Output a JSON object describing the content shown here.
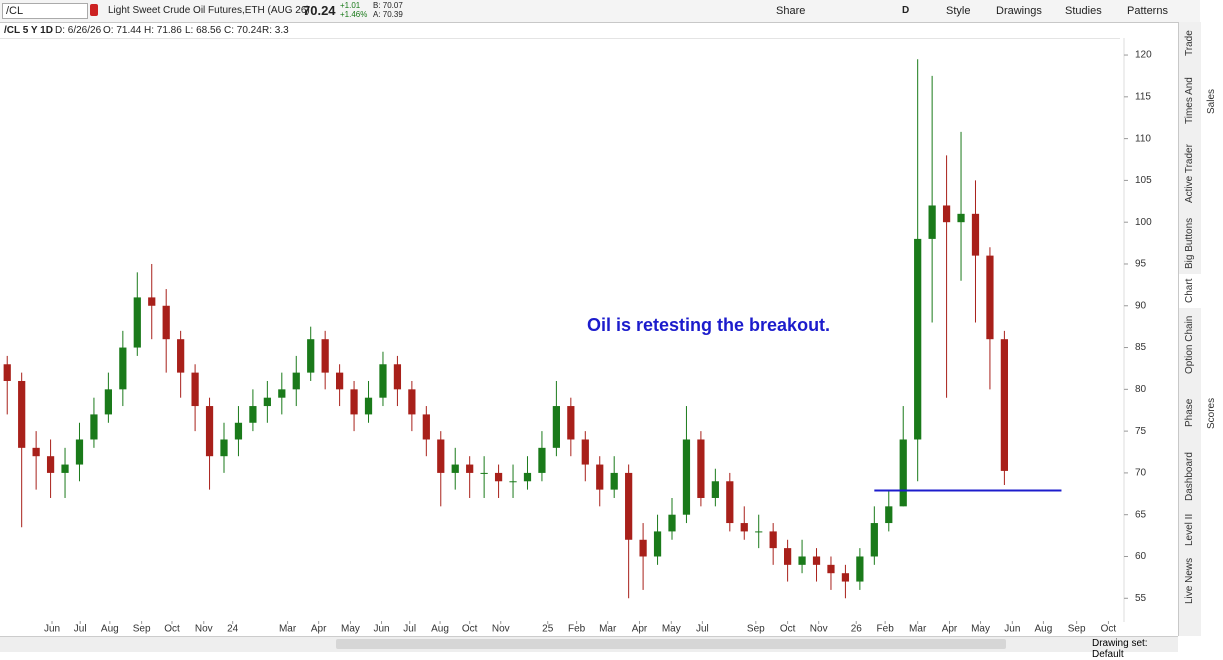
{
  "toolbar": {
    "symbol": "/CL",
    "description": "Light Sweet Crude Oil Futures,ETH (AUG 26)",
    "last": "70.24",
    "change": "+1.01",
    "change_pct": "+1.46%",
    "bid": "B: 70.07",
    "ask": "A: 70.39",
    "buttons": [
      "Share",
      "D",
      "Style",
      "Drawings",
      "Studies",
      "Patterns"
    ]
  },
  "info": {
    "label": "/CL 5 Y 1D",
    "date": "D: 6/26/26",
    "open": "O: 71.44",
    "high": "H: 71.86",
    "low": "L: 68.56",
    "close": "C: 70.24",
    "range": "R: 3.3"
  },
  "sidebar": [
    "Trade",
    "Times And Sales",
    "Active Trader",
    "Big Buttons",
    "Chart",
    "Option Chain",
    "Phase Scores",
    "Dashboard",
    "Level II",
    "Live News"
  ],
  "footer": {
    "drawing_set": "Drawing set: Default"
  },
  "chart_data": {
    "type": "candlestick",
    "annotation": "Oil is retesting the breakout.",
    "up_color": "#1a7a1a",
    "down_color": "#a8201a",
    "grid": false,
    "x": [
      1,
      3,
      5,
      7,
      9,
      11,
      13,
      15,
      17,
      19,
      21,
      23,
      25,
      27,
      29,
      31,
      33,
      35,
      37,
      39,
      41,
      43,
      45,
      47,
      49,
      51,
      53,
      55,
      57,
      59,
      61,
      63,
      65,
      67,
      69,
      71,
      73,
      75,
      77,
      79,
      81,
      83,
      85,
      87,
      89,
      91,
      93,
      95,
      97,
      99,
      101,
      103,
      105,
      107,
      109,
      111,
      113,
      115,
      117,
      119,
      121,
      123,
      125,
      127,
      129,
      131,
      133,
      135,
      137,
      139
    ],
    "open": [
      83,
      81,
      73,
      72,
      70,
      71,
      74,
      77,
      80,
      85,
      91,
      90,
      86,
      82,
      78,
      72,
      74,
      76,
      78,
      79,
      80,
      82,
      86,
      82,
      80,
      77,
      79,
      83,
      80,
      77,
      74,
      70,
      71,
      70,
      70,
      69,
      69,
      70,
      73,
      78,
      74,
      71,
      68,
      70,
      62,
      60,
      63,
      65,
      74,
      67,
      69,
      64,
      63,
      63,
      61,
      59,
      60,
      59,
      58,
      57,
      60,
      64,
      66,
      74,
      98,
      102,
      100,
      101,
      96,
      86
    ],
    "high": [
      84,
      82,
      75,
      74,
      73,
      76,
      79,
      82,
      87,
      94,
      95,
      92,
      87,
      83,
      79,
      76,
      78,
      80,
      81,
      82,
      84,
      87.5,
      87,
      83,
      81,
      81,
      84.5,
      84,
      81,
      78,
      75,
      73,
      72,
      72,
      71,
      71,
      72,
      75,
      81,
      79,
      75,
      72,
      72,
      71,
      64,
      65,
      67,
      78,
      75,
      70.5,
      70,
      66,
      65,
      64,
      62,
      62,
      61,
      60,
      59,
      61,
      66,
      68,
      78,
      119.5,
      117.5,
      108,
      110.8,
      105,
      97,
      87
    ],
    "low": [
      77,
      63.5,
      68,
      67,
      67,
      69,
      73,
      76,
      78,
      84,
      86,
      82,
      79,
      75,
      68,
      70,
      72,
      75,
      76,
      77,
      78,
      81,
      80,
      78,
      75,
      76,
      78,
      78,
      75,
      72,
      66,
      68,
      67,
      67,
      67,
      67,
      68,
      69,
      72,
      72,
      69,
      66,
      67,
      55,
      56,
      59,
      62,
      64,
      66,
      66,
      63,
      62,
      61,
      59,
      57,
      58,
      57,
      56,
      55,
      56,
      59,
      63,
      66,
      69,
      88,
      79,
      93,
      88,
      80,
      68.56
    ],
    "close": [
      81,
      73,
      72,
      70,
      71,
      74,
      77,
      80,
      85,
      91,
      90,
      86,
      82,
      78,
      72,
      74,
      76,
      78,
      79,
      80,
      82,
      86,
      82,
      80,
      77,
      79,
      83,
      80,
      77,
      74,
      70,
      71,
      70,
      70,
      69,
      69,
      70,
      73,
      78,
      74,
      71,
      68,
      70,
      62,
      60,
      63,
      65,
      74,
      67,
      69,
      64,
      63,
      63,
      61,
      59,
      60,
      59,
      58,
      57,
      60,
      64,
      66,
      74,
      98,
      102,
      100,
      101,
      96,
      86,
      70.24
    ],
    "trendline": {
      "x": [
        121,
        146.9
      ],
      "y": [
        67.9,
        67.9
      ],
      "color": "#1c1ccc"
    },
    "xlim": [
      0,
      155
    ],
    "ylim": [
      52.4,
      121.8
    ],
    "yticks": [
      55,
      60,
      65,
      70,
      75,
      80,
      85,
      90,
      95,
      100,
      105,
      110,
      115,
      120
    ],
    "xticks": [
      {
        "value": 7.2,
        "label": "Jun"
      },
      {
        "value": 11.1,
        "label": "Jul"
      },
      {
        "value": 15.2,
        "label": "Aug"
      },
      {
        "value": 19.6,
        "label": "Sep"
      },
      {
        "value": 23.8,
        "label": "Oct"
      },
      {
        "value": 28.2,
        "label": "Nov"
      },
      {
        "value": 32.2,
        "label": "24"
      },
      {
        "value": 39.8,
        "label": "Mar"
      },
      {
        "value": 44.1,
        "label": "Apr"
      },
      {
        "value": 48.5,
        "label": "May"
      },
      {
        "value": 52.8,
        "label": "Jun"
      },
      {
        "value": 56.7,
        "label": "Jul"
      },
      {
        "value": 60.9,
        "label": "Aug"
      },
      {
        "value": 65.0,
        "label": "Oct"
      },
      {
        "value": 69.3,
        "label": "Nov"
      },
      {
        "value": 75.8,
        "label": "25"
      },
      {
        "value": 79.8,
        "label": "Feb"
      },
      {
        "value": 84.1,
        "label": "Mar"
      },
      {
        "value": 88.5,
        "label": "Apr"
      },
      {
        "value": 92.9,
        "label": "May"
      },
      {
        "value": 97.2,
        "label": "Jul"
      },
      {
        "value": 104.6,
        "label": "Sep"
      },
      {
        "value": 109.0,
        "label": "Oct"
      },
      {
        "value": 113.3,
        "label": "Nov"
      },
      {
        "value": 118.5,
        "label": "26"
      },
      {
        "value": 122.5,
        "label": "Feb"
      },
      {
        "value": 127.0,
        "label": "Mar"
      },
      {
        "value": 131.4,
        "label": "Apr"
      },
      {
        "value": 135.7,
        "label": "May"
      },
      {
        "value": 140.1,
        "label": "Jun"
      },
      {
        "value": 144.4,
        "label": "Aug"
      },
      {
        "value": 149.0,
        "label": "Sep"
      },
      {
        "value": 153.4,
        "label": "Oct"
      }
    ]
  }
}
